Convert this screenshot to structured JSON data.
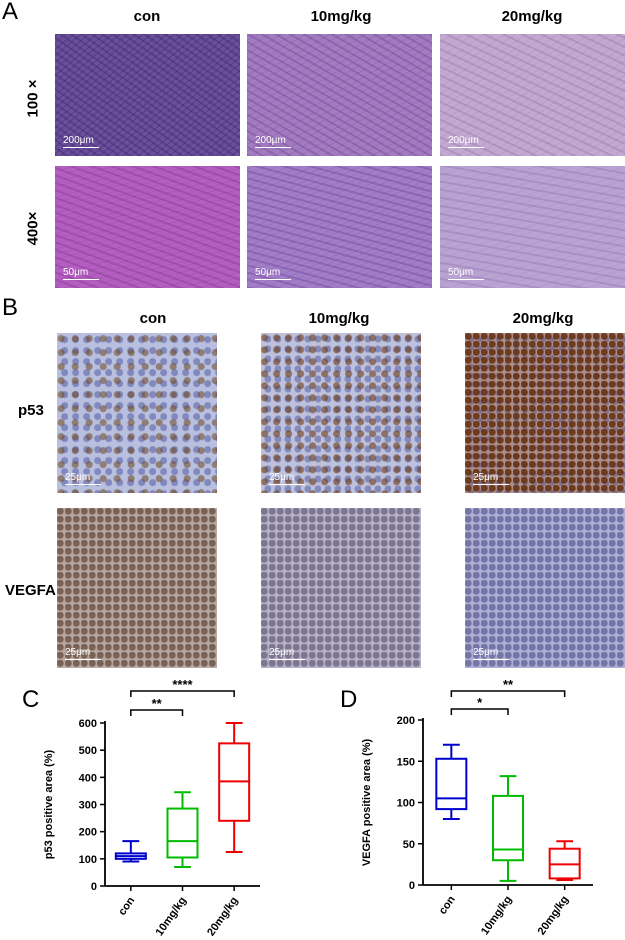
{
  "panel_a": {
    "letter": "A",
    "columns": [
      "con",
      "10mg/kg",
      "20mg/kg"
    ],
    "rows": [
      "100 ×",
      "400×"
    ],
    "scalebars": [
      "200μm",
      "50μm"
    ]
  },
  "panel_b": {
    "letter": "B",
    "columns": [
      "con",
      "10mg/kg",
      "20mg/kg"
    ],
    "rows": [
      "p53",
      "VEGFA"
    ],
    "scalebar": "25μm"
  },
  "chart_data": [
    {
      "type": "box",
      "panel": "C",
      "ylabel": "p53 positive area (%)",
      "categories": [
        "con",
        "10mg/kg",
        "20mg/kg"
      ],
      "colors": [
        "#0000cc",
        "#00bb00",
        "#ee0000"
      ],
      "boxes": [
        {
          "min": 90,
          "q1": 100,
          "median": 110,
          "q3": 120,
          "max": 165
        },
        {
          "min": 70,
          "q1": 105,
          "median": 165,
          "q3": 285,
          "max": 345
        },
        {
          "min": 125,
          "q1": 240,
          "median": 385,
          "q3": 525,
          "max": 600
        }
      ],
      "ylim": [
        0,
        600
      ],
      "yticks": [
        0,
        100,
        200,
        300,
        400,
        500,
        600
      ],
      "significance": [
        {
          "from": 0,
          "to": 1,
          "label": "**"
        },
        {
          "from": 0,
          "to": 2,
          "label": "****"
        }
      ]
    },
    {
      "type": "box",
      "panel": "D",
      "ylabel": "VEGFA positive area (%)",
      "categories": [
        "con",
        "10mg/kg",
        "20mg/kg"
      ],
      "colors": [
        "#0000cc",
        "#00bb00",
        "#ee0000"
      ],
      "boxes": [
        {
          "min": 80,
          "q1": 92,
          "median": 105,
          "q3": 153,
          "max": 170
        },
        {
          "min": 5,
          "q1": 30,
          "median": 43,
          "q3": 108,
          "max": 132
        },
        {
          "min": 6,
          "q1": 8,
          "median": 25,
          "q3": 44,
          "max": 53
        }
      ],
      "ylim": [
        0,
        200
      ],
      "yticks": [
        0,
        50,
        100,
        150,
        200
      ],
      "significance": [
        {
          "from": 0,
          "to": 1,
          "label": "*"
        },
        {
          "from": 0,
          "to": 2,
          "label": "**"
        }
      ]
    }
  ]
}
